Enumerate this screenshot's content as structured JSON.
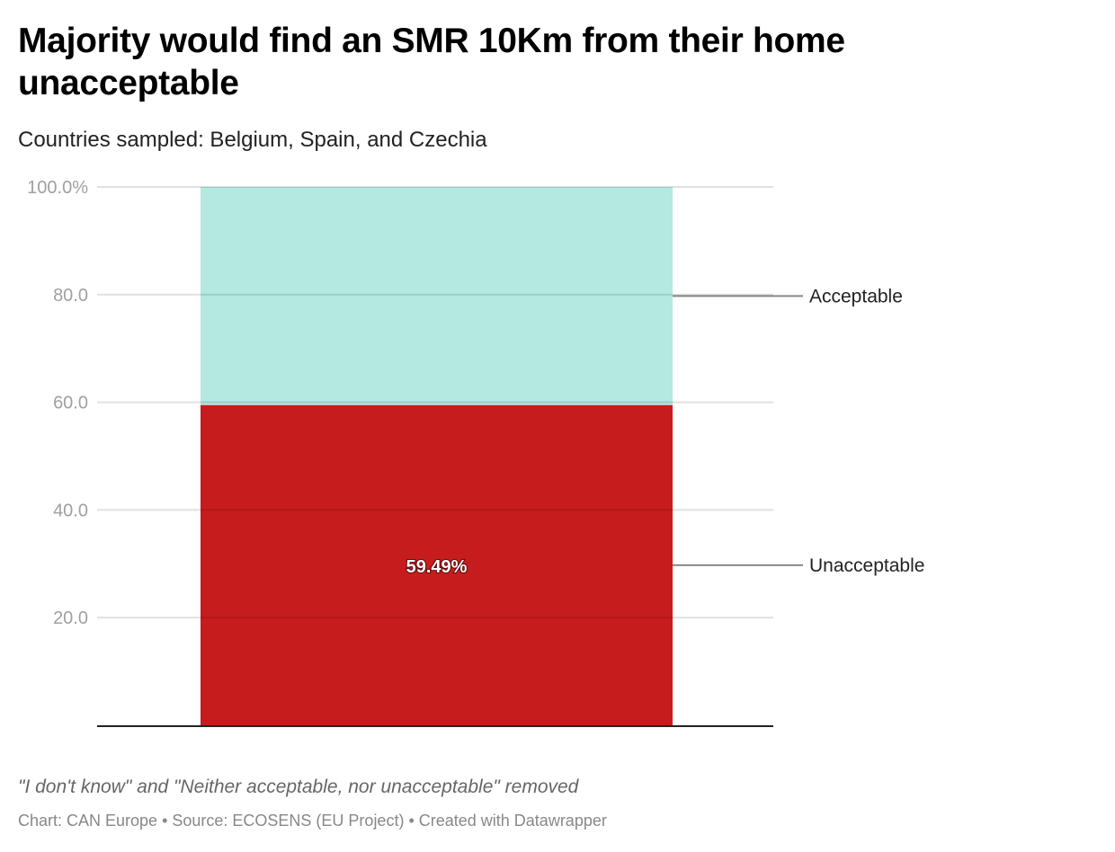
{
  "chart_data": {
    "type": "bar",
    "stacked": true,
    "title": "Majority would find an SMR 10Km from their home unacceptable",
    "subtitle": "Countries sampled: Belgium, Spain, and Czechia",
    "categories": [
      ""
    ],
    "series": [
      {
        "name": "Unacceptable",
        "values": [
          59.49
        ],
        "color": "#c71c1e",
        "label": "59.49%"
      },
      {
        "name": "Acceptable",
        "values": [
          40.51
        ],
        "color": "#b3e9e1"
      }
    ],
    "ylim": [
      0,
      100
    ],
    "yticks": [
      {
        "value": 100,
        "label": "100.0%"
      },
      {
        "value": 80,
        "label": "80.0"
      },
      {
        "value": 60,
        "label": "60.0"
      },
      {
        "value": 40,
        "label": "40.0"
      },
      {
        "value": 20,
        "label": "20.0"
      }
    ],
    "grid": true,
    "legend": "direct labels right",
    "notes": "\"I don't know\" and \"Neither acceptable, nor unacceptable\" removed",
    "byline": "Chart: CAN Europe • Source: ECOSENS (EU Project) • Created with Datawrapper"
  }
}
